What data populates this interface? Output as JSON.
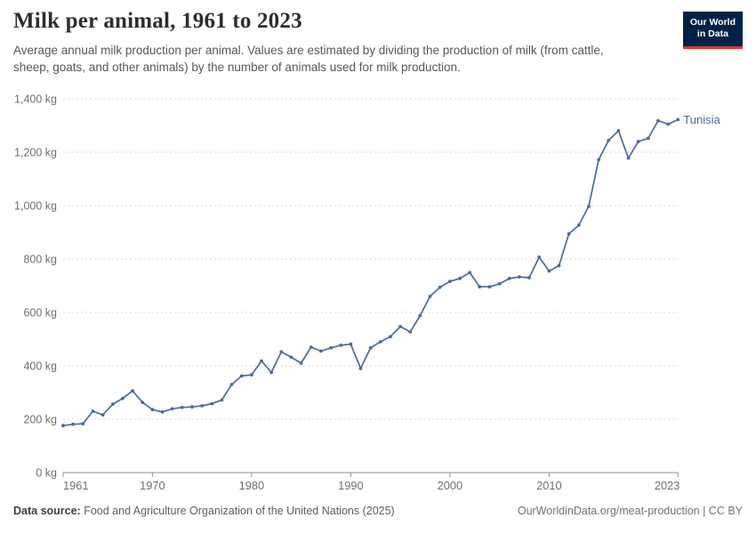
{
  "header": {
    "title": "Milk per animal, 1961 to 2023",
    "subtitle": "Average annual milk production per animal. Values are estimated by dividing the production of milk (from cattle, sheep, goats, and other animals) by the number of animals used for milk production.",
    "logo": {
      "line1": "Our World",
      "line2": "in Data"
    }
  },
  "colors": {
    "series_line": "#4C6A9C",
    "logo_background": "#002147",
    "logo_stripe": "#d73a2d",
    "gridline": "#d9d9d9",
    "axis_line": "#8f8f8f",
    "tick_text": "#6e6e6e"
  },
  "chart_data": {
    "type": "line",
    "title": "Milk per animal, 1961 to 2023",
    "unit": "kg",
    "grid": "dashed-horizontal",
    "legend_position": "end-of-line",
    "ylim": [
      0,
      1400
    ],
    "xlim": [
      1961,
      2023
    ],
    "yticks": [
      {
        "value": 0,
        "label": "0 kg"
      },
      {
        "value": 200,
        "label": "200 kg"
      },
      {
        "value": 400,
        "label": "400 kg"
      },
      {
        "value": 600,
        "label": "600 kg"
      },
      {
        "value": 800,
        "label": "800 kg"
      },
      {
        "value": 1000,
        "label": "1,000 kg"
      },
      {
        "value": 1200,
        "label": "1,200 kg"
      },
      {
        "value": 1400,
        "label": "1,400 kg"
      }
    ],
    "xticks": [
      1961,
      1970,
      1980,
      1990,
      2000,
      2010,
      2023
    ],
    "x": [
      1961,
      1962,
      1963,
      1964,
      1965,
      1966,
      1967,
      1968,
      1969,
      1970,
      1971,
      1972,
      1973,
      1974,
      1975,
      1976,
      1977,
      1978,
      1979,
      1980,
      1981,
      1982,
      1983,
      1984,
      1985,
      1986,
      1987,
      1988,
      1989,
      1990,
      1991,
      1992,
      1993,
      1994,
      1995,
      1996,
      1997,
      1998,
      1999,
      2000,
      2001,
      2002,
      2003,
      2004,
      2005,
      2006,
      2007,
      2008,
      2009,
      2010,
      2011,
      2012,
      2013,
      2014,
      2015,
      2016,
      2017,
      2018,
      2019,
      2020,
      2021,
      2022,
      2023
    ],
    "series": [
      {
        "name": "Tunisia",
        "values": [
          176,
          181,
          183,
          230,
          216,
          256,
          278,
          306,
          263,
          236,
          227,
          239,
          244,
          246,
          250,
          258,
          272,
          330,
          362,
          366,
          418,
          375,
          452,
          432,
          410,
          470,
          455,
          467,
          477,
          481,
          390,
          467,
          490,
          509,
          547,
          527,
          588,
          660,
          694,
          716,
          727,
          749,
          696,
          696,
          707,
          727,
          733,
          730,
          807,
          755,
          775,
          894,
          927,
          997,
          1172,
          1244,
          1280,
          1178,
          1240,
          1252,
          1318,
          1305,
          1322
        ]
      }
    ]
  },
  "footer": {
    "datasource_label": "Data source:",
    "datasource_text": " Food and Agriculture Organization of the United Nations (2025)",
    "attribution": "OurWorldinData.org/meat-production | CC BY"
  }
}
